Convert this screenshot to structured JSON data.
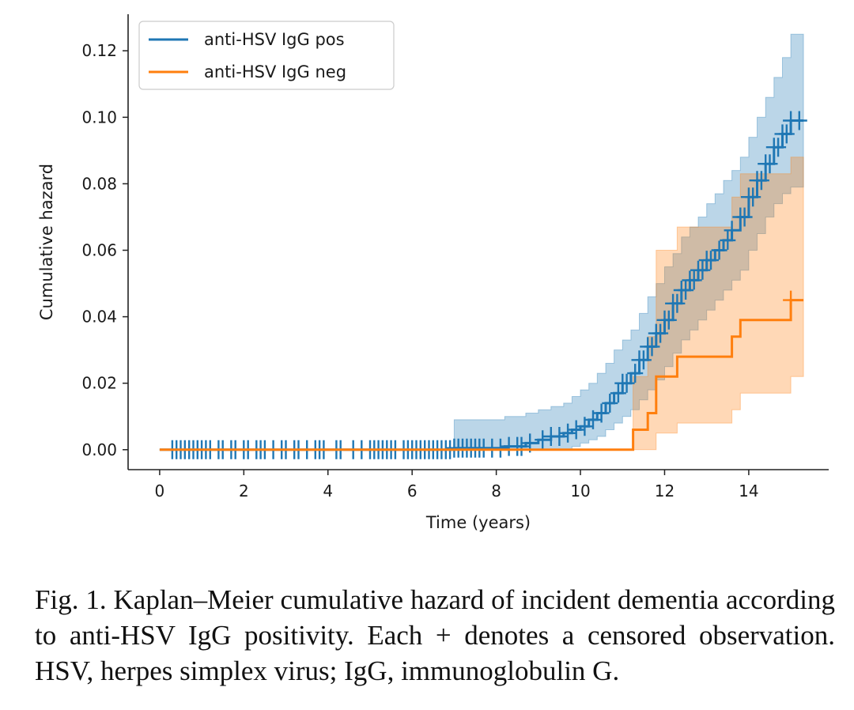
{
  "chart_data": {
    "type": "line",
    "subtype": "step",
    "title": "",
    "xlabel": "Time (years)",
    "ylabel": "Cumulative hazard",
    "xlim": [
      -0.75,
      15.9
    ],
    "ylim": [
      -0.006,
      0.131
    ],
    "xticks": [
      0,
      2,
      4,
      6,
      8,
      10,
      12,
      14
    ],
    "yticks": [
      0.0,
      0.02,
      0.04,
      0.06,
      0.08,
      0.1,
      0.12
    ],
    "ytick_labels": [
      "0.00",
      "0.02",
      "0.04",
      "0.06",
      "0.08",
      "0.10",
      "0.12"
    ],
    "grid": false,
    "legend_position": "top-left",
    "series": [
      {
        "name": "anti-HSV IgG pos",
        "color": "#1f77b4",
        "step_x": [
          0,
          7.0,
          8.2,
          8.7,
          9.0,
          9.3,
          9.6,
          9.8,
          10.0,
          10.2,
          10.4,
          10.6,
          10.8,
          11.0,
          11.2,
          11.4,
          11.6,
          11.8,
          12.0,
          12.2,
          12.4,
          12.6,
          12.8,
          13.0,
          13.2,
          13.4,
          13.6,
          13.8,
          14.0,
          14.2,
          14.4,
          14.6,
          14.8,
          15.0,
          15.3
        ],
        "step_y": [
          0,
          0.0005,
          0.001,
          0.002,
          0.003,
          0.004,
          0.005,
          0.006,
          0.007,
          0.009,
          0.011,
          0.014,
          0.017,
          0.02,
          0.023,
          0.027,
          0.031,
          0.035,
          0.039,
          0.044,
          0.048,
          0.051,
          0.054,
          0.057,
          0.06,
          0.063,
          0.066,
          0.07,
          0.076,
          0.081,
          0.086,
          0.091,
          0.095,
          0.099,
          0.099
        ],
        "ci_upper": [
          0,
          0.009,
          0.01,
          0.011,
          0.012,
          0.013,
          0.014,
          0.016,
          0.018,
          0.02,
          0.023,
          0.026,
          0.03,
          0.033,
          0.036,
          0.041,
          0.046,
          0.05,
          0.055,
          0.059,
          0.064,
          0.067,
          0.07,
          0.074,
          0.077,
          0.081,
          0.084,
          0.088,
          0.094,
          0.1,
          0.106,
          0.112,
          0.118,
          0.125,
          0.125
        ],
        "ci_lower": [
          0,
          0,
          0,
          0,
          0,
          0,
          0,
          0.001,
          0.002,
          0.003,
          0.004,
          0.006,
          0.008,
          0.01,
          0.012,
          0.015,
          0.018,
          0.021,
          0.025,
          0.029,
          0.033,
          0.036,
          0.039,
          0.042,
          0.045,
          0.048,
          0.051,
          0.054,
          0.06,
          0.065,
          0.07,
          0.074,
          0.077,
          0.079,
          0.079
        ],
        "censored_x": [
          0.3,
          0.4,
          0.5,
          0.6,
          0.7,
          0.8,
          0.9,
          1.0,
          1.1,
          1.2,
          1.4,
          1.5,
          1.7,
          1.8,
          2.0,
          2.1,
          2.3,
          2.4,
          2.5,
          2.7,
          2.9,
          3.0,
          3.2,
          3.3,
          3.5,
          3.7,
          3.8,
          3.9,
          4.2,
          4.3,
          4.6,
          4.8,
          5.0,
          5.1,
          5.2,
          5.3,
          5.4,
          5.5,
          5.6,
          5.8,
          5.9,
          6.0,
          6.1,
          6.2,
          6.3,
          6.4,
          6.5,
          6.6,
          6.7,
          6.8,
          6.9,
          7.0,
          7.1,
          7.2,
          7.3,
          7.4,
          7.5,
          7.6,
          7.7,
          7.9,
          8.1,
          8.3,
          8.5,
          8.6,
          8.8,
          9.1,
          9.3,
          9.5,
          9.7,
          9.9,
          10.1,
          10.3,
          10.5,
          10.7,
          10.9,
          11.0,
          11.1,
          11.3,
          11.4,
          11.5,
          11.6,
          11.7,
          11.8,
          11.9,
          12.0,
          12.1,
          12.2,
          12.3,
          12.4,
          12.5,
          12.6,
          12.7,
          12.8,
          12.9,
          13.0,
          13.1,
          13.3,
          13.5,
          13.6,
          13.8,
          13.9,
          14.0,
          14.1,
          14.2,
          14.3,
          14.4,
          14.5,
          14.6,
          14.7,
          14.8,
          14.9,
          15.0,
          15.2
        ]
      },
      {
        "name": "anti-HSV IgG neg",
        "color": "#ff7f0e",
        "step_x": [
          0,
          11.25,
          11.6,
          11.8,
          12.3,
          13.6,
          13.8,
          15.0,
          15.3
        ],
        "step_y": [
          0,
          0.006,
          0.011,
          0.022,
          0.028,
          0.034,
          0.039,
          0.045,
          0.045
        ],
        "ci_upper": [
          0,
          0.022,
          0.034,
          0.06,
          0.067,
          0.076,
          0.083,
          0.088,
          0.088
        ],
        "ci_lower": [
          0,
          0,
          0,
          0.005,
          0.008,
          0.012,
          0.017,
          0.022,
          0.022
        ],
        "censored_x": [
          15.0
        ]
      }
    ]
  },
  "caption": "Fig. 1. Kaplan–Meier cumulative hazard of incident dementia according to anti-HSV IgG positivity. Each + denotes a censored observation. HSV, herpes simplex virus; IgG, immunoglobulin G."
}
